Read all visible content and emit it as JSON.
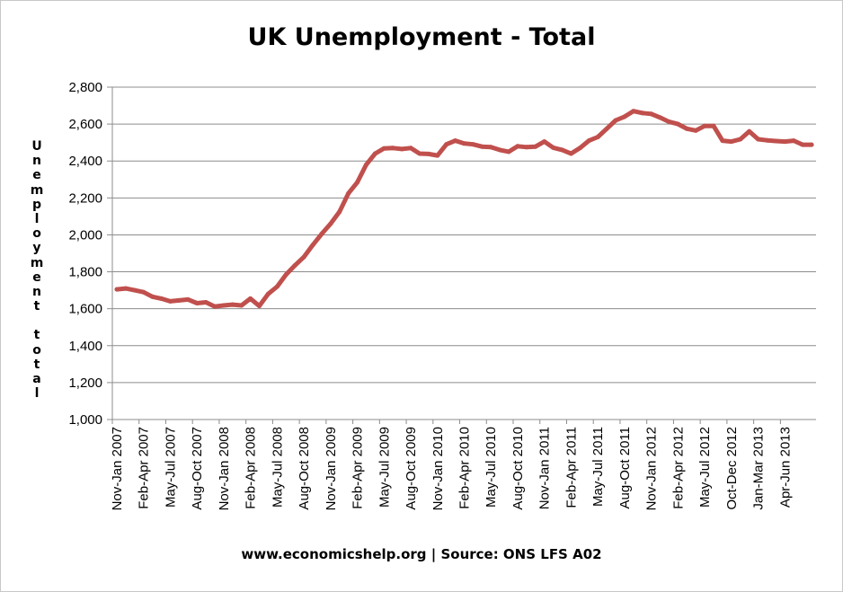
{
  "chart_data": {
    "type": "line",
    "title": "UK Unemployment - Total",
    "ylabel": "Unemployment total",
    "xlabel": "",
    "source_note": "www.economicshelp.org | Source: ONS LFS A02",
    "ylim": [
      1000,
      2800
    ],
    "yticks": [
      1000,
      1200,
      1400,
      1600,
      1800,
      2000,
      2200,
      2400,
      2600,
      2800
    ],
    "ytick_labels": [
      "1,000",
      "1,200",
      "1,400",
      "1,600",
      "1,800",
      "2,000",
      "2,200",
      "2,400",
      "2,600",
      "2,800"
    ],
    "grid": true,
    "line_color": "#c0504d",
    "x_tick_labels": [
      "Nov-Jan 2007",
      "Feb-Apr 2007",
      "May-Jul 2007",
      "Aug-Oct 2007",
      "Nov-Jan 2008",
      "Feb-Apr 2008",
      "May-Jul 2008",
      "Aug-Oct 2008",
      "Nov-Jan 2009",
      "Feb-Apr 2009",
      "May-Jul 2009",
      "Aug-Oct 2009",
      "Nov-Jan 2010",
      "Feb-Apr 2010",
      "May-Jul 2010",
      "Aug-Oct 2010",
      "Nov-Jan 2011",
      "Feb-Apr 2011",
      "May-Jul 2011",
      "Aug-Oct 2011",
      "Nov-Jan 2012",
      "Feb-Apr 2012",
      "May-Jul 2012",
      "Oct-Dec 2012",
      "Jan-Mar 2013",
      "Apr-Jun 2013"
    ],
    "x_tick_index": [
      0,
      3,
      6,
      9,
      12,
      15,
      18,
      21,
      24,
      27,
      30,
      33,
      36,
      39,
      42,
      45,
      48,
      51,
      54,
      57,
      60,
      63,
      66,
      69,
      72,
      75
    ],
    "values": [
      1705,
      1710,
      1700,
      1690,
      1665,
      1655,
      1640,
      1645,
      1650,
      1630,
      1635,
      1612,
      1618,
      1622,
      1618,
      1655,
      1615,
      1680,
      1720,
      1785,
      1835,
      1880,
      1945,
      2005,
      2060,
      2125,
      2225,
      2285,
      2380,
      2440,
      2468,
      2470,
      2465,
      2470,
      2440,
      2438,
      2430,
      2490,
      2510,
      2495,
      2490,
      2478,
      2475,
      2460,
      2450,
      2480,
      2475,
      2478,
      2505,
      2472,
      2460,
      2440,
      2470,
      2510,
      2530,
      2575,
      2620,
      2640,
      2670,
      2660,
      2655,
      2635,
      2612,
      2600,
      2575,
      2565,
      2590,
      2590,
      2510,
      2505,
      2518,
      2560,
      2518,
      2512,
      2508,
      2505,
      2510,
      2488,
      2488
    ]
  }
}
